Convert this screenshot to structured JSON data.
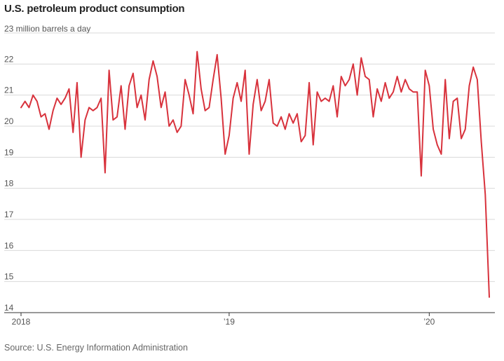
{
  "chart_data": {
    "type": "line",
    "title": "U.S. petroleum product consumption",
    "ylabel_unit": "million barrels a day",
    "top_tick_label": "23 million barrels a day",
    "source": "Source: U.S. Energy Information Administration",
    "x_start": "2018-01",
    "ylim": [
      14,
      23
    ],
    "y_ticks": [
      14,
      15,
      16,
      17,
      18,
      19,
      20,
      21,
      22
    ],
    "x_ticks": [
      {
        "week": 0,
        "label": "2018"
      },
      {
        "week": 52,
        "label": "’19"
      },
      {
        "week": 102,
        "label": "’20"
      }
    ],
    "series": [
      {
        "name": "U.S. petroleum product consumption",
        "color": "#d8323c",
        "values": [
          20.6,
          20.8,
          20.6,
          21.0,
          20.8,
          20.3,
          20.4,
          19.9,
          20.5,
          20.9,
          20.7,
          20.9,
          21.2,
          19.8,
          21.4,
          19.0,
          20.2,
          20.6,
          20.5,
          20.6,
          20.9,
          18.5,
          21.8,
          20.2,
          20.3,
          21.3,
          19.9,
          21.3,
          21.7,
          20.6,
          21.0,
          20.2,
          21.5,
          22.1,
          21.6,
          20.6,
          21.1,
          20.0,
          20.2,
          19.8,
          20.0,
          21.5,
          21.0,
          20.4,
          22.4,
          21.2,
          20.5,
          20.6,
          21.5,
          22.3,
          20.9,
          19.1,
          19.7,
          20.9,
          21.4,
          20.8,
          21.8,
          19.1,
          20.7,
          21.5,
          20.5,
          20.8,
          21.5,
          20.1,
          20.0,
          20.3,
          19.9,
          20.4,
          20.1,
          20.4,
          19.5,
          19.7,
          21.4,
          19.4,
          21.1,
          20.8,
          20.9,
          20.8,
          21.3,
          20.3,
          21.6,
          21.3,
          21.5,
          22.0,
          21.0,
          22.2,
          21.6,
          21.5,
          20.3,
          21.2,
          20.8,
          21.4,
          20.9,
          21.1,
          21.6,
          21.1,
          21.5,
          21.2,
          21.1,
          21.1,
          18.4,
          21.8,
          21.3,
          19.9,
          19.4,
          19.1,
          21.5,
          19.6,
          20.8,
          20.9,
          19.6,
          19.9,
          21.3,
          21.9,
          21.5,
          19.5,
          17.8,
          14.5
        ]
      }
    ]
  }
}
